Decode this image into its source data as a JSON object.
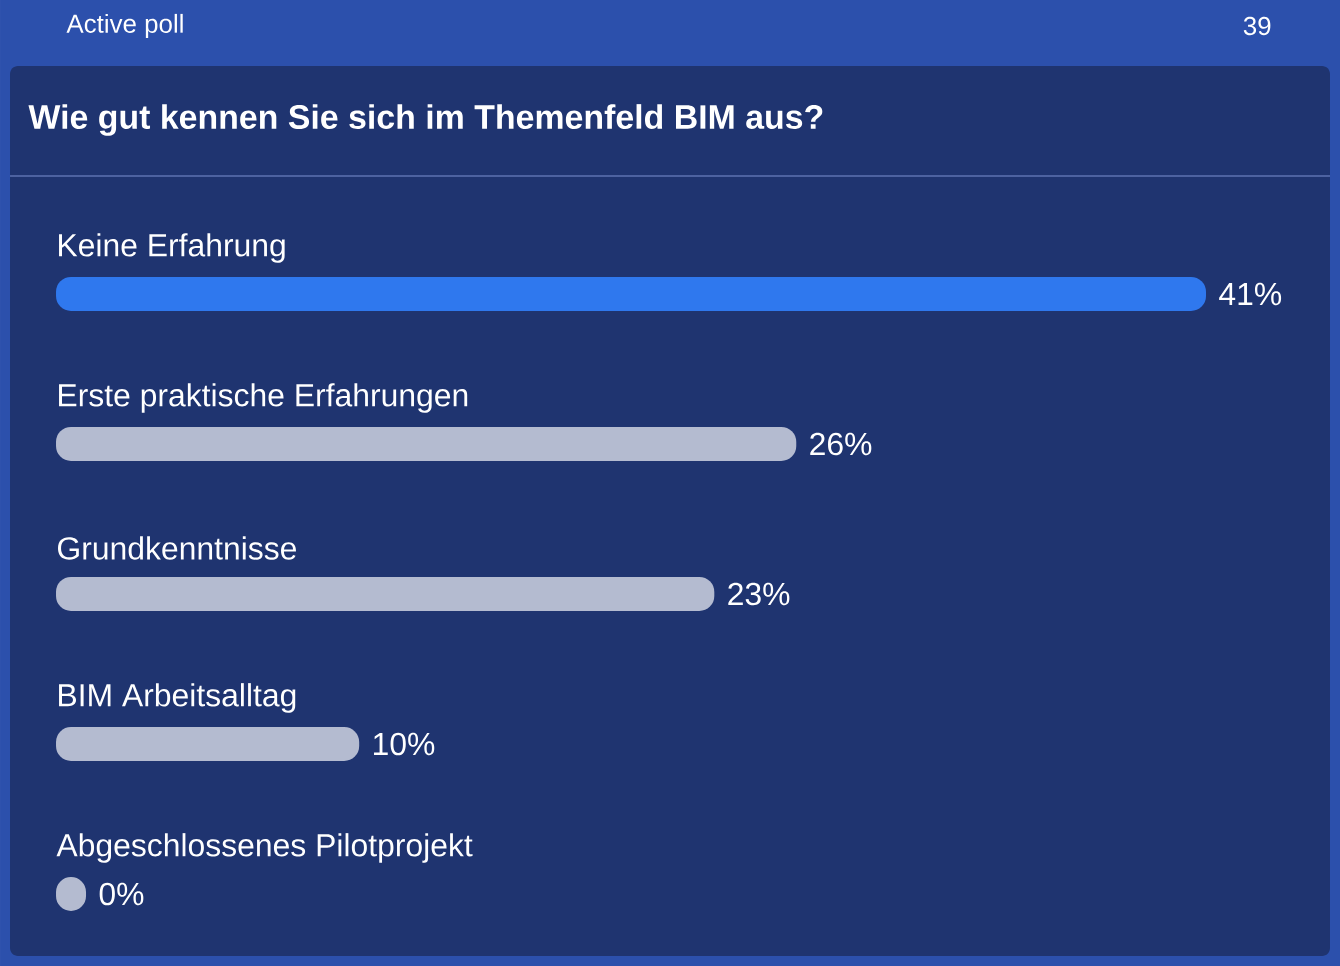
{
  "chart_data": {
    "type": "bar",
    "orientation": "horizontal",
    "title": "Wie gut kennen Sie sich im Themenfeld BIM aus?",
    "annotations": [
      "Active poll",
      "39"
    ],
    "categories": [
      "Keine Erfahrung",
      "Erste praktische Erfahrungen",
      "Grundkenntnisse",
      "BIM Arbeitsalltag",
      "Abgeschlossenes Pilotprojekt"
    ],
    "values": [
      41,
      26,
      23,
      10,
      0
    ],
    "value_labels": [
      "41%",
      "26%",
      "23%",
      "10%",
      "0%"
    ],
    "colors": [
      "#2f78ee",
      "#b4bbd0",
      "#b4bbd0",
      "#b4bbd0",
      "#b4bbd0"
    ],
    "xlim": [
      0,
      41
    ]
  }
}
